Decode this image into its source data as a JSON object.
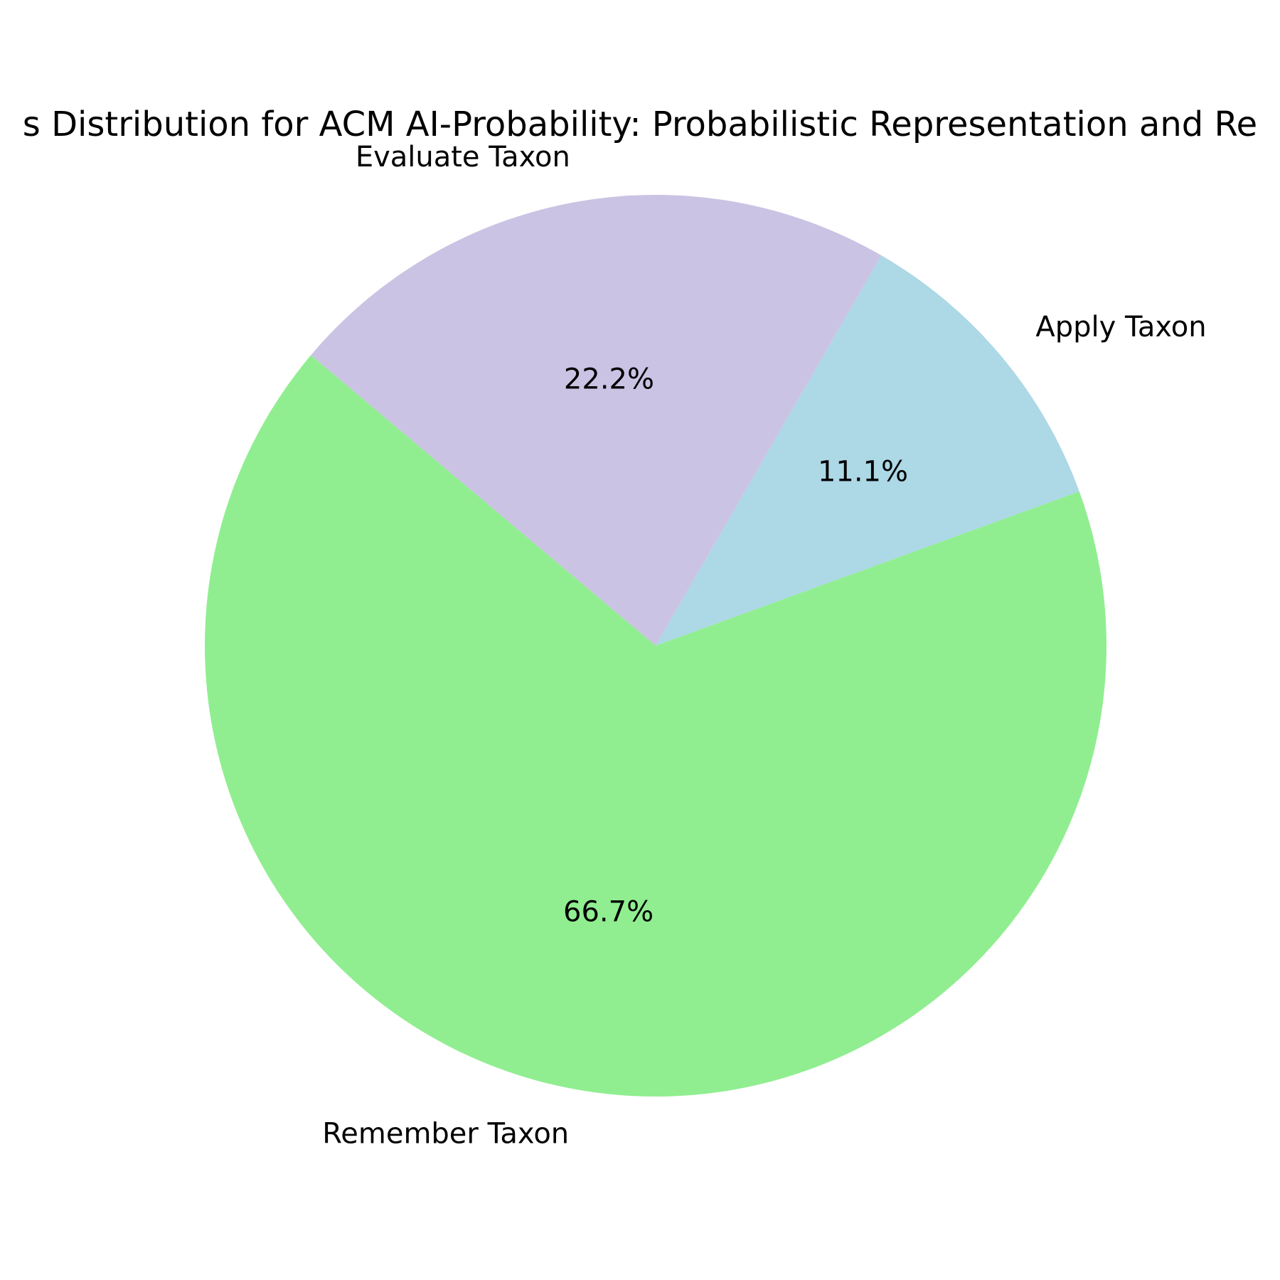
{
  "chart_data": {
    "type": "pie",
    "title": "s Distribution for ACM AI-Probability: Probabilistic Representation and Re",
    "labels": [
      "Apply Taxon",
      "Evaluate Taxon",
      "Remember Taxon"
    ],
    "values": [
      11.1,
      22.2,
      66.7
    ],
    "percent_labels": [
      "11.1%",
      "22.2%",
      "66.7%"
    ],
    "colors": [
      "#add8e6",
      "#cbc3e3",
      "#90ee90"
    ],
    "start_angle_deg": 20,
    "direction": "counterclockwise",
    "legend": "none"
  }
}
